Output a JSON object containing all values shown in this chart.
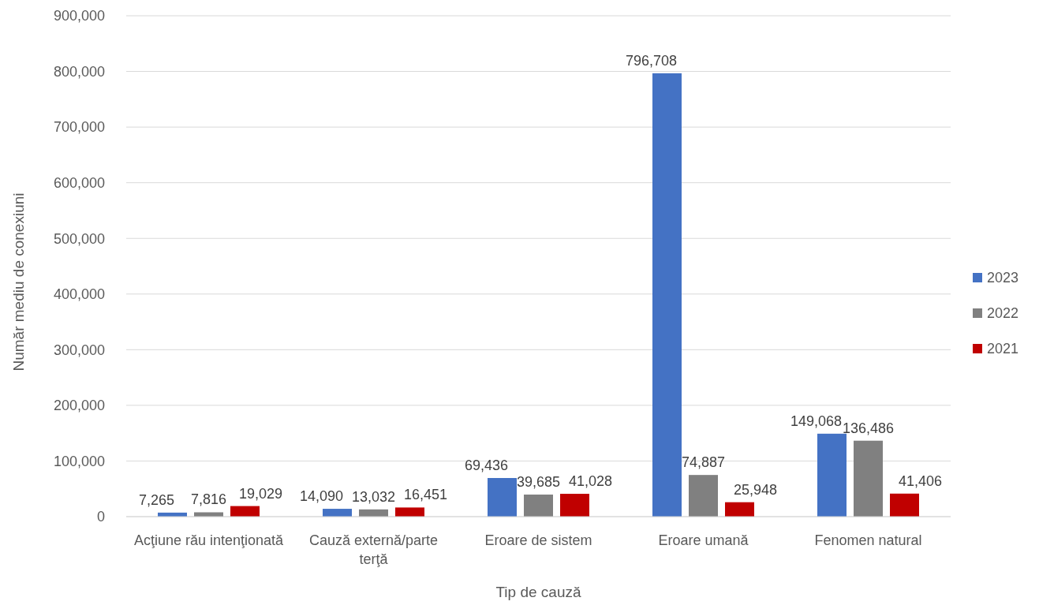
{
  "chart_data": {
    "type": "bar",
    "xlabel": "Tip de cauză",
    "ylabel": "Număr mediu de conexiuni",
    "categories": [
      "Acţiune rău intenţionată",
      "Cauză externă/parte terţă",
      "Eroare de sistem",
      "Eroare umană",
      "Fenomen natural"
    ],
    "series": [
      {
        "name": "2023",
        "color": "#4472c4",
        "values": [
          7265,
          14090,
          69436,
          796708,
          149068
        ],
        "value_labels": [
          "7,265",
          "14,090",
          "69,436",
          "796,708",
          "149,068"
        ]
      },
      {
        "name": "2022",
        "color": "#808080",
        "values": [
          7816,
          13032,
          39685,
          74887,
          136486
        ],
        "value_labels": [
          "7,816",
          "13,032",
          "39,685",
          "74,887",
          "136,486"
        ]
      },
      {
        "name": "2021",
        "color": "#c00000",
        "values": [
          19029,
          16451,
          41028,
          25948,
          41406
        ],
        "value_labels": [
          "19,029",
          "16,451",
          "41,028",
          "25,948",
          "41,406"
        ]
      }
    ],
    "ylim": [
      0,
      900000
    ],
    "yticks": [
      {
        "value": 0,
        "label": "0"
      },
      {
        "value": 100000,
        "label": "100,000"
      },
      {
        "value": 200000,
        "label": "200,000"
      },
      {
        "value": 300000,
        "label": "300,000"
      },
      {
        "value": 400000,
        "label": "400,000"
      },
      {
        "value": 500000,
        "label": "500,000"
      },
      {
        "value": 600000,
        "label": "600,000"
      },
      {
        "value": 700000,
        "label": "700,000"
      },
      {
        "value": 800000,
        "label": "800,000"
      },
      {
        "value": 900000,
        "label": "900,000"
      }
    ],
    "grid": "y",
    "legend": "right"
  }
}
